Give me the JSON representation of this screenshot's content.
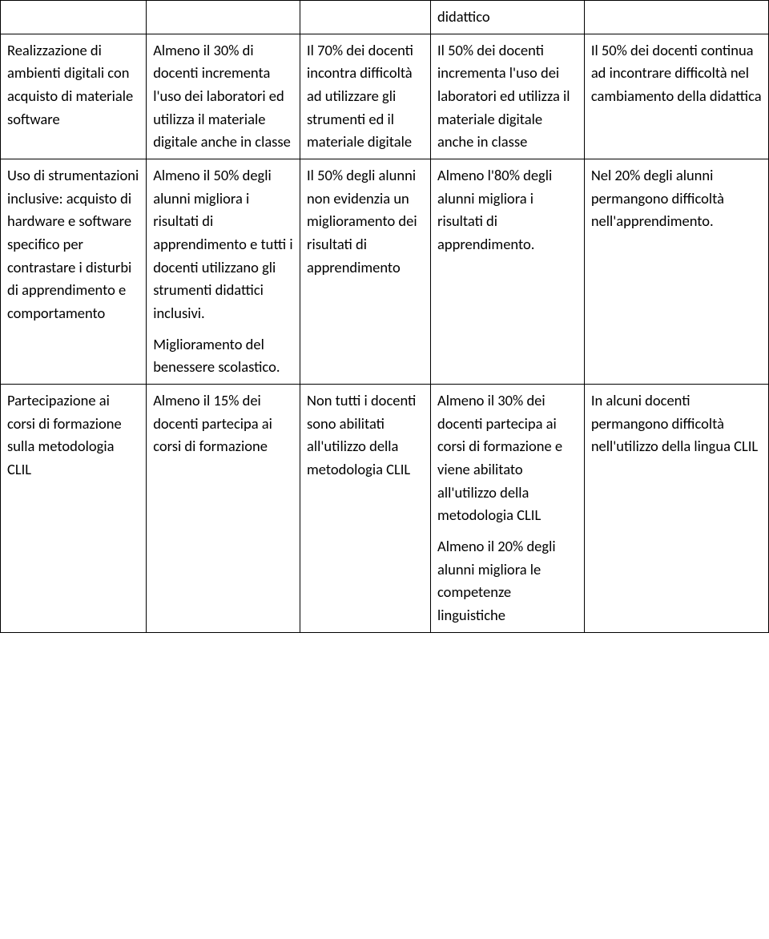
{
  "table": {
    "rows": [
      {
        "c1": "",
        "c2": "",
        "c3": "",
        "c4": "didattico",
        "c5": ""
      },
      {
        "c1": "Realizzazione di ambienti digitali con acquisto di materiale software",
        "c2": "Almeno il 30% di docenti incrementa l'uso dei laboratori ed utilizza il materiale digitale anche in classe",
        "c3": "Il 70% dei docenti incontra difficoltà ad utilizzare gli strumenti ed il materiale digitale",
        "c4": "Il 50% dei docenti incrementa l'uso dei laboratori ed utilizza il materiale digitale anche in classe",
        "c5": "Il 50% dei docenti continua ad incontrare difficoltà nel cambiamento della didattica"
      },
      {
        "c1": "Uso di strumentazioni inclusive: acquisto di hardware e software specifico per contrastare i disturbi di apprendimento e comportamento",
        "c2a": "Almeno il 50% degli alunni migliora i risultati di apprendimento e tutti i docenti utilizzano gli strumenti didattici inclusivi.",
        "c2b": "Miglioramento del benessere scolastico.",
        "c3": "Il 50% degli alunni non evidenzia un miglioramento dei risultati di apprendimento",
        "c4": "Almeno l'80% degli alunni migliora i risultati di apprendimento.",
        "c5": "Nel 20% degli alunni permangono difficoltà nell'apprendimento."
      },
      {
        "c1": "Partecipazione ai corsi di formazione sulla metodologia CLIL",
        "c2": "Almeno il 15% dei docenti partecipa ai corsi di formazione",
        "c3": "Non tutti i docenti sono abilitati all'utilizzo della metodologia CLIL",
        "c4a": "Almeno il 30% dei docenti partecipa ai corsi di formazione e viene abilitato all'utilizzo della metodologia CLIL",
        "c4b": "Almeno il 20% degli alunni migliora le competenze linguistiche",
        "c5": "In alcuni docenti permangono difficoltà nell'utilizzo della lingua CLIL"
      }
    ]
  }
}
